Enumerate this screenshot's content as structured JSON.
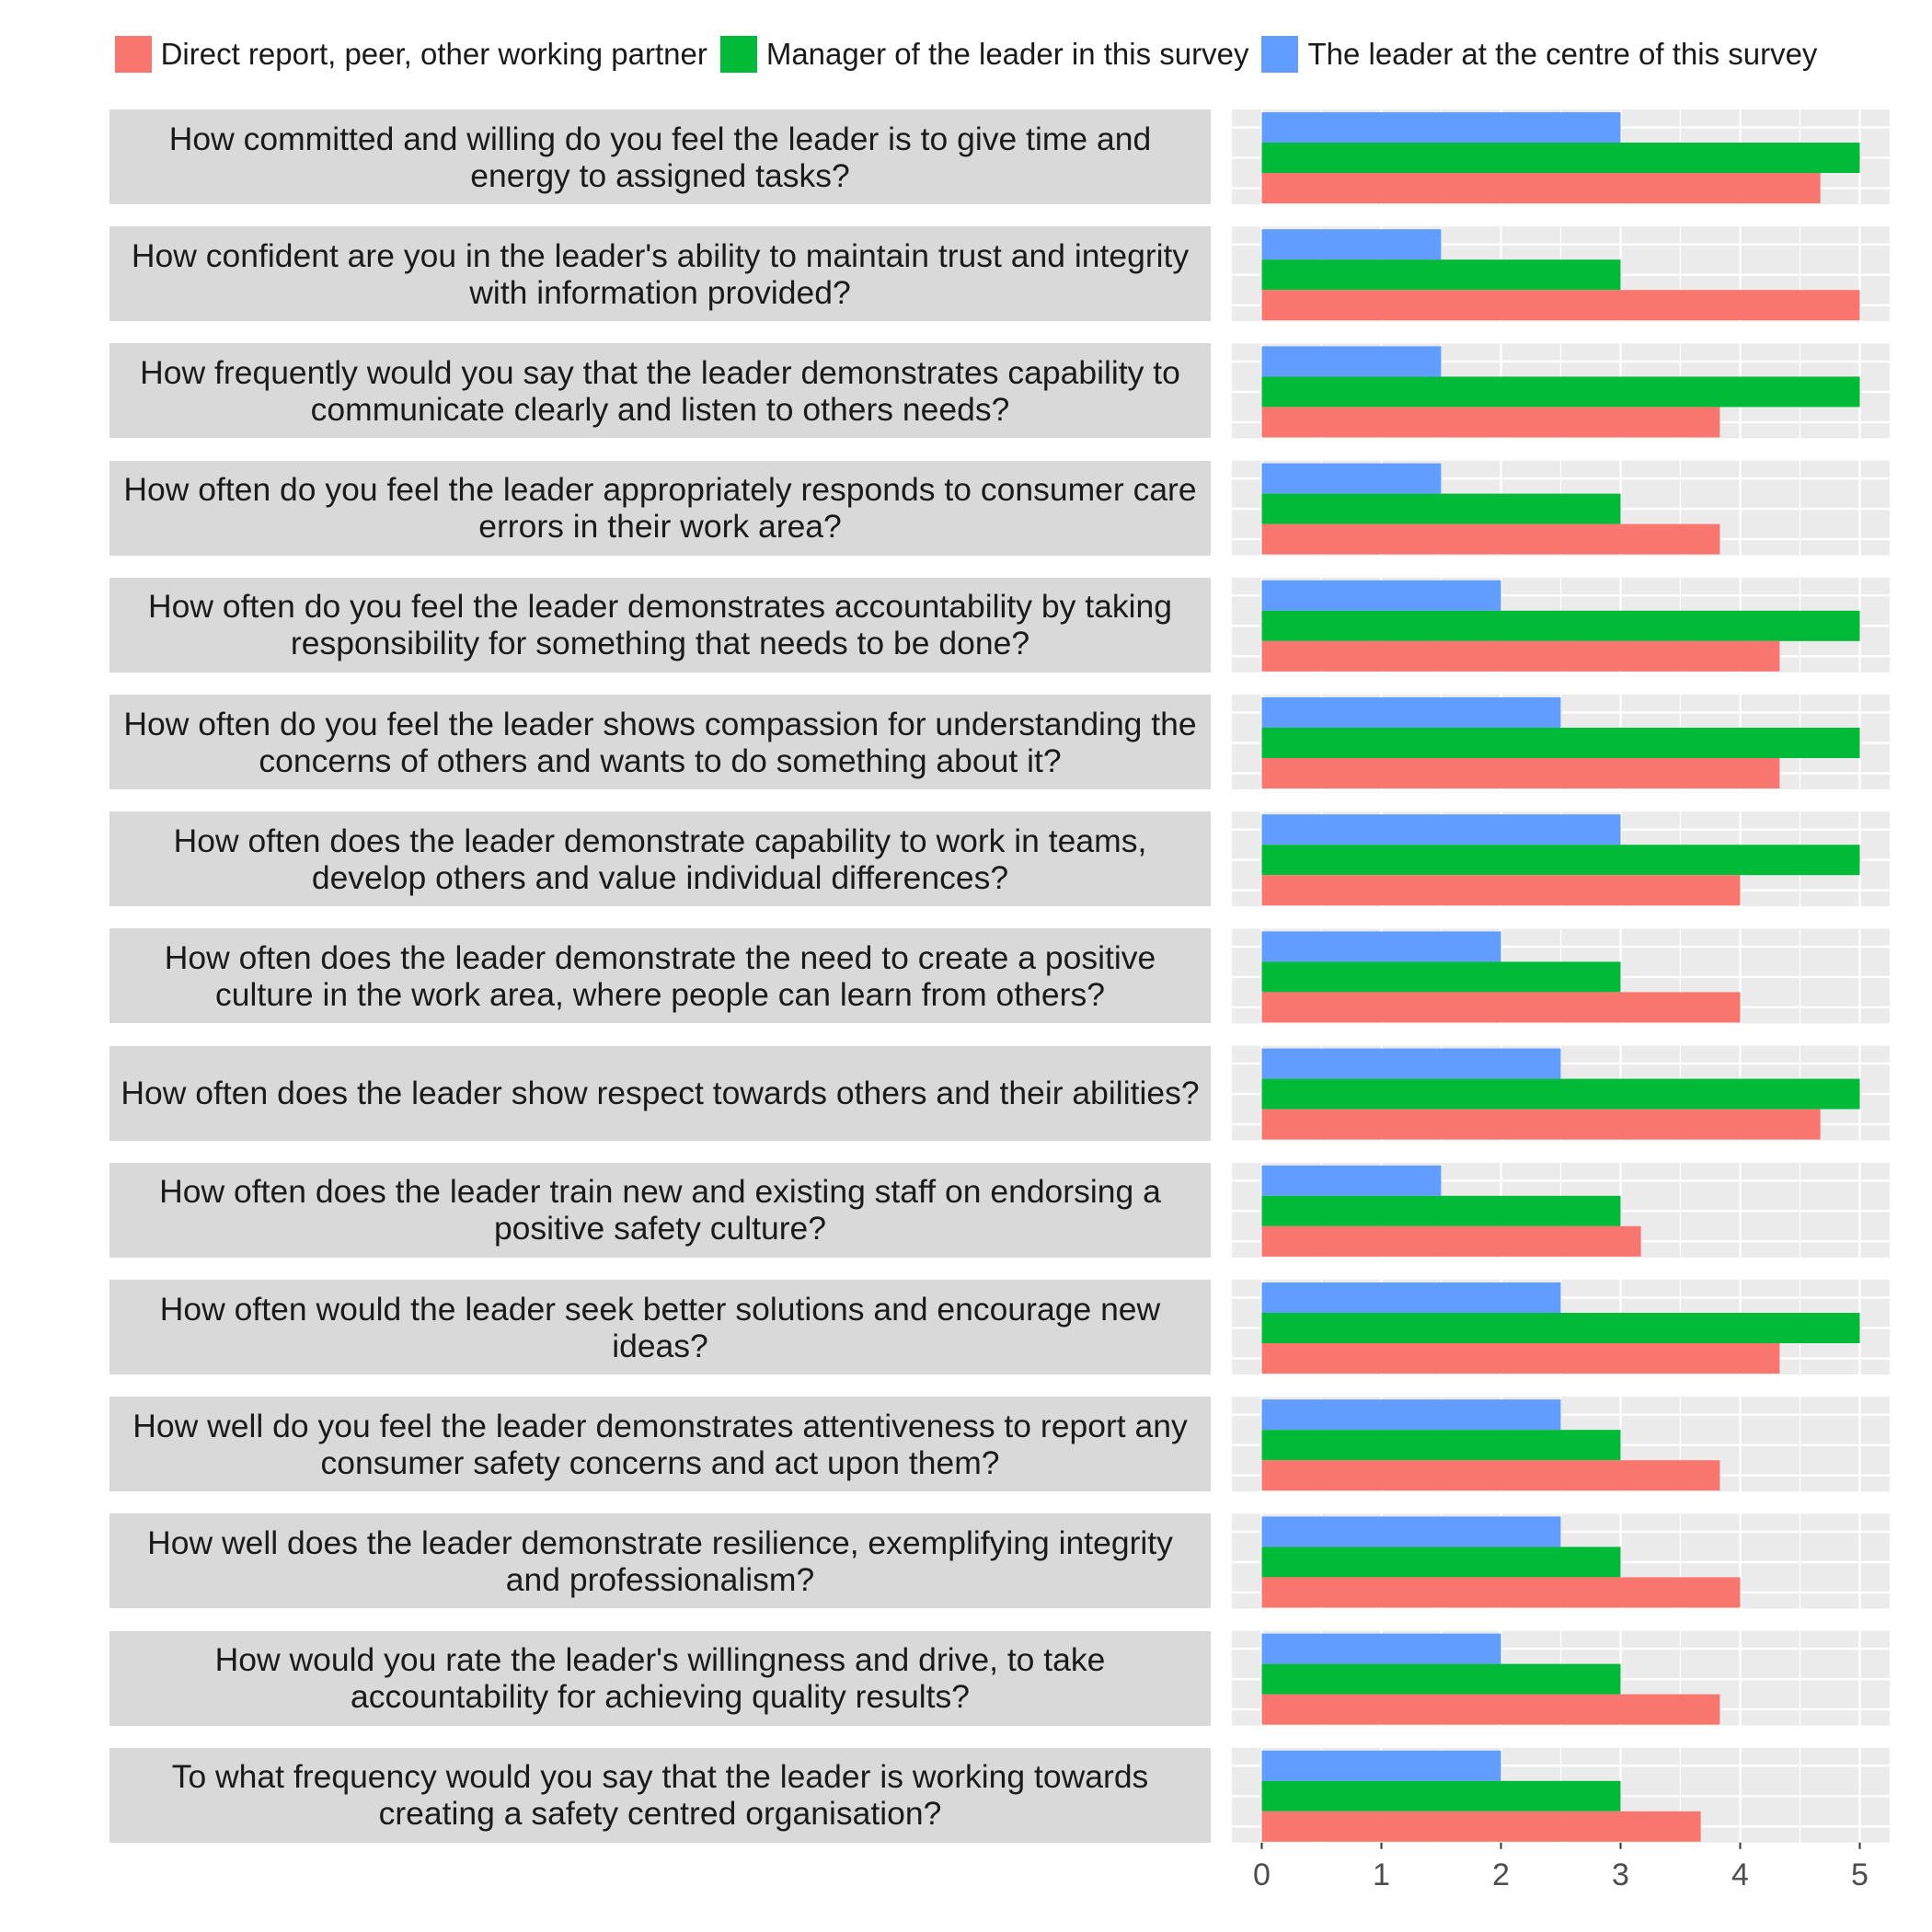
{
  "chart_data": {
    "type": "bar",
    "orientation": "horizontal",
    "facets": [
      "How committed and willing do you feel the leader is to give time and energy to assigned tasks?",
      "How confident are you in the leader's ability to maintain trust and integrity with information provided?",
      "How frequently would you say that the leader demonstrates capability to communicate clearly and listen to others needs?",
      "How often do you feel the leader appropriately responds to consumer care errors in their work area?",
      "How often do you feel the leader demonstrates accountability by taking responsibility for something that needs to be done?",
      "How often do you feel the leader shows compassion for understanding the concerns of others and wants to do something about it?",
      "How often does the leader demonstrate capability to work in teams, develop others and value individual differences?",
      "How often does the leader demonstrate the need to create a positive culture in the work area, where people can learn from others?",
      "How often does the leader show respect towards others and their abilities?",
      "How often does the leader train new and existing staff on endorsing a positive safety culture?",
      "How often would the leader seek better solutions and encourage new ideas?",
      "How well do you feel the leader demonstrates attentiveness to report any consumer safety concerns and act upon them?",
      "How well does the leader demonstrate resilience, exemplifying integrity and professionalism?",
      "How would you rate the leader's willingness and drive, to take accountability for achieving quality results?",
      "To what frequency would you say that the leader is working towards creating a safety centred organisation?"
    ],
    "series": [
      {
        "name": "The leader at the centre of this survey",
        "color": "#619CFF",
        "values": [
          3,
          1.5,
          1.5,
          1.5,
          2,
          2.5,
          3,
          2,
          2.5,
          1.5,
          2.5,
          2.5,
          2.5,
          2,
          2
        ]
      },
      {
        "name": "Manager of the leader in this survey",
        "color": "#00BA38",
        "values": [
          5,
          3,
          5,
          3,
          5,
          5,
          5,
          3,
          5,
          3,
          5,
          3,
          3,
          3,
          3
        ]
      },
      {
        "name": "Direct report, peer, other working partner",
        "color": "#F8766D",
        "values": [
          4.67,
          5,
          3.83,
          3.83,
          4.33,
          4.33,
          4,
          4,
          4.67,
          3.17,
          4.33,
          3.83,
          4,
          3.83,
          3.67
        ]
      }
    ],
    "legend_order": [
      "Direct report, peer, other working partner",
      "Manager of the leader in this survey",
      "The leader at the centre of this survey"
    ],
    "x_ticks": [
      "0",
      "1",
      "2",
      "3",
      "4",
      "5"
    ],
    "xlim": [
      -0.25,
      5.25
    ],
    "legend_position": "top",
    "grid": true,
    "panel_background": "#EBEBEB",
    "strip_background": "#D9D9D9"
  }
}
